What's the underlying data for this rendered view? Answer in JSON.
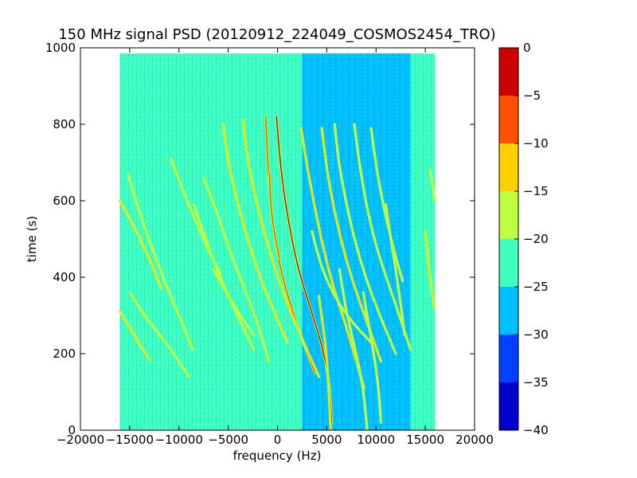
{
  "chart_data": {
    "type": "heatmap",
    "title": "150 MHz signal PSD (20120912_224049_COSMOS2454_TRO)",
    "xlabel": "frequency (Hz)",
    "ylabel": "time (s)",
    "xlim": [
      -20000,
      20000
    ],
    "ylim": [
      0,
      1000
    ],
    "x_ticks": [
      -20000,
      -15000,
      -10000,
      -5000,
      0,
      5000,
      10000,
      15000,
      20000
    ],
    "y_ticks": [
      0,
      200,
      400,
      600,
      800,
      1000
    ],
    "data_extent": {
      "x": [
        -16000,
        16000
      ],
      "y": [
        0,
        985
      ]
    },
    "colorbar": {
      "range": [
        -40,
        0
      ],
      "ticks": [
        0,
        -5,
        -10,
        -15,
        -20,
        -25,
        -30,
        -35,
        -40
      ],
      "levels": [
        {
          "range": [
            -40,
            -35
          ],
          "color": "#0000cc"
        },
        {
          "range": [
            -35,
            -30
          ],
          "color": "#0040ff"
        },
        {
          "range": [
            -30,
            -25
          ],
          "color": "#00bfff"
        },
        {
          "range": [
            -25,
            -20
          ],
          "color": "#40ffbf"
        },
        {
          "range": [
            -20,
            -15
          ],
          "color": "#bfff40"
        },
        {
          "range": [
            -15,
            -10
          ],
          "color": "#ffd000"
        },
        {
          "range": [
            -10,
            -5
          ],
          "color": "#ff5000"
        },
        {
          "range": [
            -5,
            0
          ],
          "color": "#cc0000"
        }
      ]
    },
    "background_level": "-25 to -20",
    "low_noise_band": {
      "x": [
        2500,
        13500
      ],
      "level": "-30 to -25"
    },
    "traces": [
      {
        "points": [
          [
            -100,
            820
          ],
          [
            300,
            690
          ],
          [
            1000,
            560
          ],
          [
            2000,
            430
          ],
          [
            3200,
            330
          ],
          [
            4200,
            250
          ],
          [
            4900,
            180
          ],
          [
            5300,
            110
          ],
          [
            5500,
            20
          ]
        ],
        "peak_level": "-5 to 0"
      },
      {
        "points": [
          [
            -1200,
            820
          ],
          [
            -1000,
            700
          ],
          [
            -600,
            560
          ],
          [
            200,
            430
          ],
          [
            1400,
            320
          ],
          [
            2600,
            230
          ],
          [
            3800,
            150
          ]
        ],
        "peak_level": "-10 to -5"
      },
      {
        "points": [
          [
            -800,
            670
          ],
          [
            -700,
            590
          ],
          [
            -300,
            510
          ],
          [
            200,
            450
          ]
        ],
        "peak_level": "-10 to -5"
      },
      {
        "points": [
          [
            -16000,
            600
          ],
          [
            -14500,
            530
          ],
          [
            -13000,
            450
          ],
          [
            -11800,
            370
          ]
        ],
        "peak_level": "-15 to -10"
      },
      {
        "points": [
          [
            -16000,
            310
          ],
          [
            -15000,
            270
          ],
          [
            -14000,
            225
          ],
          [
            -13000,
            185
          ]
        ],
        "peak_level": "-15 to -10"
      },
      {
        "points": [
          [
            -15200,
            670
          ],
          [
            -14000,
            570
          ],
          [
            -12800,
            480
          ],
          [
            -11000,
            360
          ],
          [
            -9500,
            270
          ],
          [
            -8600,
            210
          ]
        ],
        "peak_level": "-20 to -15"
      },
      {
        "points": [
          [
            -15000,
            360
          ],
          [
            -13500,
            300
          ],
          [
            -12000,
            250
          ],
          [
            -10500,
            200
          ],
          [
            -9000,
            140
          ]
        ],
        "peak_level": "-20 to -15"
      },
      {
        "points": [
          [
            -7500,
            660
          ],
          [
            -6000,
            560
          ],
          [
            -5000,
            480
          ],
          [
            -3500,
            380
          ],
          [
            -2000,
            280
          ],
          [
            -900,
            180
          ]
        ],
        "peak_level": "-20 to -15"
      },
      {
        "points": [
          [
            -5500,
            800
          ],
          [
            -5000,
            700
          ],
          [
            -4000,
            590
          ],
          [
            -2800,
            480
          ],
          [
            -1500,
            380
          ],
          [
            0,
            290
          ],
          [
            1000,
            230
          ]
        ],
        "peak_level": "-15 to -10"
      },
      {
        "points": [
          [
            -3500,
            810
          ],
          [
            -3000,
            700
          ],
          [
            -2000,
            580
          ],
          [
            -600,
            450
          ],
          [
            700,
            350
          ],
          [
            2300,
            250
          ],
          [
            4200,
            140
          ]
        ],
        "peak_level": "-15 to -10"
      },
      {
        "points": [
          [
            -10800,
            710
          ],
          [
            -9500,
            620
          ],
          [
            -8200,
            540
          ],
          [
            -7000,
            470
          ],
          [
            -5800,
            410
          ]
        ],
        "peak_level": "-20 to -15"
      },
      {
        "points": [
          [
            -8500,
            590
          ],
          [
            -7300,
            500
          ],
          [
            -6000,
            410
          ],
          [
            -4800,
            340
          ],
          [
            -3500,
            270
          ],
          [
            -2400,
            210
          ]
        ],
        "peak_level": "-20 to -15"
      },
      {
        "points": [
          [
            -6500,
            420
          ],
          [
            -5200,
            360
          ],
          [
            -3800,
            300
          ],
          [
            -2400,
            250
          ]
        ],
        "peak_level": "-20 to -15"
      },
      {
        "points": [
          [
            2400,
            790
          ],
          [
            3000,
            690
          ],
          [
            3800,
            580
          ],
          [
            4700,
            470
          ],
          [
            5700,
            370
          ],
          [
            7000,
            270
          ],
          [
            8000,
            180
          ],
          [
            8800,
            110
          ]
        ],
        "peak_level": "-15 to -10"
      },
      {
        "points": [
          [
            4500,
            790
          ],
          [
            5000,
            680
          ],
          [
            5800,
            570
          ],
          [
            6800,
            460
          ],
          [
            8000,
            360
          ],
          [
            9400,
            260
          ],
          [
            10500,
            180
          ]
        ],
        "peak_level": "-15 to -10"
      },
      {
        "points": [
          [
            5800,
            800
          ],
          [
            6200,
            700
          ],
          [
            7000,
            590
          ],
          [
            8000,
            480
          ],
          [
            9200,
            380
          ],
          [
            10700,
            280
          ],
          [
            12000,
            200
          ]
        ],
        "peak_level": "-20 to -15"
      },
      {
        "points": [
          [
            7800,
            800
          ],
          [
            8300,
            700
          ],
          [
            9000,
            590
          ],
          [
            10000,
            480
          ],
          [
            11300,
            380
          ],
          [
            12500,
            290
          ],
          [
            13500,
            210
          ]
        ],
        "peak_level": "-20 to -15"
      },
      {
        "points": [
          [
            9500,
            790
          ],
          [
            10000,
            690
          ],
          [
            10800,
            580
          ],
          [
            11700,
            480
          ],
          [
            12700,
            390
          ]
        ],
        "peak_level": "-20 to -15"
      },
      {
        "points": [
          [
            3500,
            520
          ],
          [
            4300,
            440
          ],
          [
            5200,
            380
          ],
          [
            6500,
            320
          ],
          [
            8000,
            270
          ],
          [
            9500,
            230
          ]
        ],
        "peak_level": "-20 to -15"
      },
      {
        "points": [
          [
            4200,
            350
          ],
          [
            4700,
            260
          ],
          [
            5100,
            160
          ],
          [
            5300,
            60
          ],
          [
            5400,
            0
          ]
        ],
        "peak_level": "-15 to -10"
      },
      {
        "points": [
          [
            6300,
            420
          ],
          [
            6900,
            320
          ],
          [
            7800,
            220
          ],
          [
            8500,
            140
          ],
          [
            8900,
            60
          ],
          [
            9100,
            0
          ]
        ],
        "peak_level": "-20 to -15"
      },
      {
        "points": [
          [
            8700,
            360
          ],
          [
            9300,
            270
          ],
          [
            9900,
            180
          ],
          [
            10300,
            100
          ],
          [
            10500,
            20
          ]
        ],
        "peak_level": "-20 to -15"
      },
      {
        "points": [
          [
            11000,
            590
          ],
          [
            11500,
            500
          ],
          [
            12000,
            420
          ],
          [
            12500,
            330
          ],
          [
            12900,
            250
          ]
        ],
        "peak_level": "-20 to -15"
      },
      {
        "points": [
          [
            15000,
            520
          ],
          [
            15300,
            440
          ],
          [
            15600,
            380
          ],
          [
            15900,
            320
          ]
        ],
        "peak_level": "-15 to -10"
      },
      {
        "points": [
          [
            15500,
            680
          ],
          [
            15800,
            630
          ],
          [
            16000,
            600
          ]
        ],
        "peak_level": "-20 to -15"
      }
    ]
  }
}
